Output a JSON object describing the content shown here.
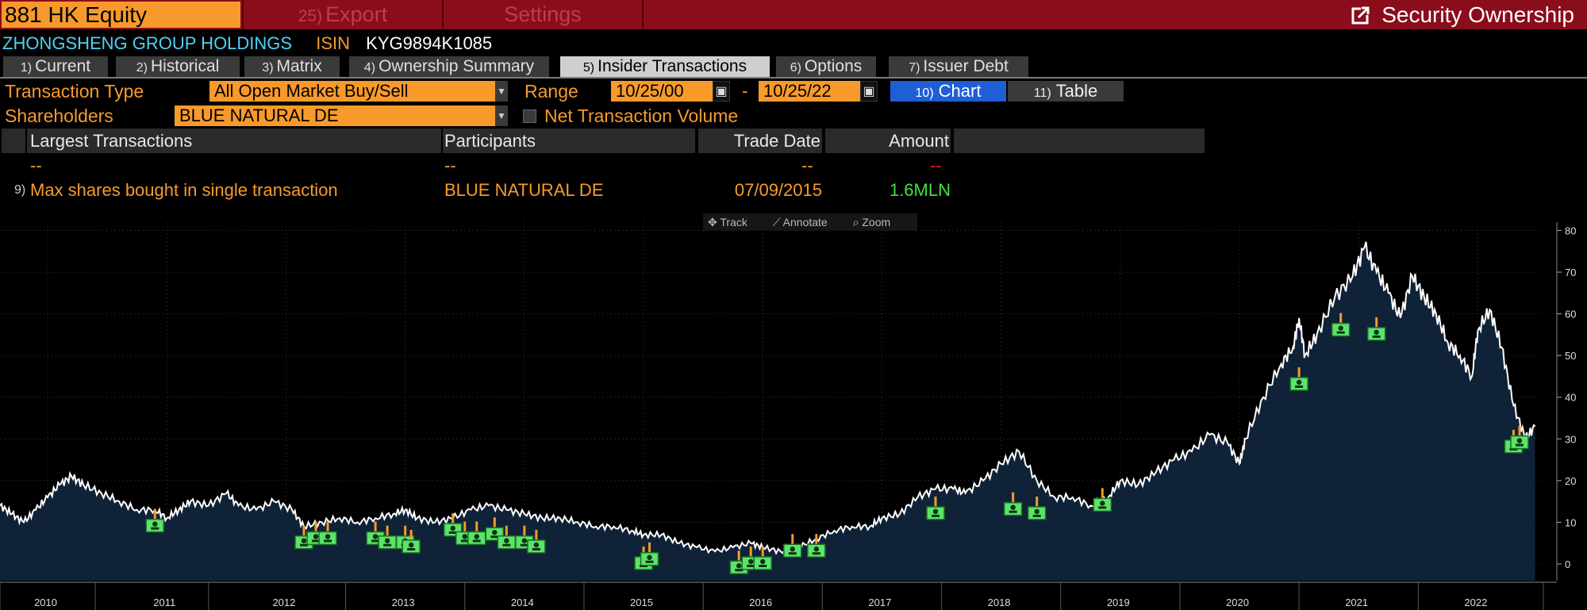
{
  "header": {
    "ticker": "881 HK Equity",
    "export_num": "25)",
    "export_label": "Export",
    "settings_label": "Settings",
    "title": "Security Ownership"
  },
  "security": {
    "name": "ZHONGSHENG GROUP HOLDINGS",
    "isin_label": "ISIN",
    "isin": "KYG9894K1085"
  },
  "tabs": [
    {
      "num": "1)",
      "label": "Current"
    },
    {
      "num": "2)",
      "label": "Historical"
    },
    {
      "num": "3)",
      "label": "Matrix"
    },
    {
      "num": "4)",
      "label": "Ownership Summary"
    },
    {
      "num": "5)",
      "label": "Insider Transactions"
    },
    {
      "num": "6)",
      "label": "Options"
    },
    {
      "num": "7)",
      "label": "Issuer Debt"
    }
  ],
  "controls": {
    "transaction_type_label": "Transaction Type",
    "transaction_type_value": "All Open Market Buy/Sell",
    "range_label": "Range",
    "range_start": "10/25/00",
    "range_dash": "-",
    "range_end": "10/25/22",
    "chart_num": "10)",
    "chart_label": "Chart",
    "table_num": "11)",
    "table_label": "Table",
    "shareholders_label": "Shareholders",
    "shareholders_value": "BLUE NATURAL DE",
    "net_volume_label": "Net Transaction Volume"
  },
  "table": {
    "headers": [
      "Largest Transactions",
      "Participants",
      "Trade Date",
      "Amount"
    ],
    "dash_row": [
      "--",
      "--",
      "--",
      "--"
    ],
    "rows": [
      {
        "num": "9)",
        "description": "Max shares bought in single transaction",
        "participant": "BLUE NATURAL DE",
        "date": "07/09/2015",
        "amount": "1.6MLN"
      }
    ]
  },
  "chart_tools": {
    "track": "Track",
    "annotate": "Annotate",
    "zoom": "Zoom"
  },
  "colors": {
    "accent": "#f79a2b",
    "topbar": "#8a0d1c",
    "secname": "#4fd2f5",
    "amount": "#3ee03e",
    "dash_red": "#e0201c",
    "marker": "#5be36a",
    "area": "#0f2238"
  },
  "chart_data": {
    "type": "area",
    "ylim": [
      -4,
      82
    ],
    "yticks": [
      0,
      10,
      20,
      30,
      40,
      50,
      60,
      70,
      80
    ],
    "xlim": [
      2009.6,
      2022.55
    ],
    "xticks": [
      {
        "label": "2010",
        "x": 2010.0
      },
      {
        "label": "2011",
        "x": 2011.0
      },
      {
        "label": "2012",
        "x": 2012.0
      },
      {
        "label": "2013",
        "x": 2013.0
      },
      {
        "label": "2014",
        "x": 2014.0
      },
      {
        "label": "2015",
        "x": 2015.0
      },
      {
        "label": "2016",
        "x": 2016.0
      },
      {
        "label": "2017",
        "x": 2017.0
      },
      {
        "label": "2018",
        "x": 2018.0
      },
      {
        "label": "2019",
        "x": 2019.0
      },
      {
        "label": "2020",
        "x": 2020.0
      },
      {
        "label": "2021",
        "x": 2021.0
      },
      {
        "label": "2022",
        "x": 2022.0
      }
    ],
    "price_series": {
      "x": [
        2009.6,
        2009.7,
        2009.8,
        2009.9,
        2010.0,
        2010.1,
        2010.2,
        2010.3,
        2010.45,
        2010.6,
        2010.75,
        2010.9,
        2011.0,
        2011.1,
        2011.2,
        2011.35,
        2011.5,
        2011.6,
        2011.75,
        2011.9,
        2012.05,
        2012.15,
        2012.3,
        2012.45,
        2012.6,
        2012.75,
        2012.9,
        2013.0,
        2013.1,
        2013.25,
        2013.4,
        2013.55,
        2013.7,
        2013.85,
        2014.0,
        2014.15,
        2014.3,
        2014.45,
        2014.6,
        2014.75,
        2014.9,
        2015.0,
        2015.15,
        2015.3,
        2015.45,
        2015.6,
        2015.75,
        2015.9,
        2016.0,
        2016.15,
        2016.3,
        2016.45,
        2016.6,
        2016.75,
        2016.9,
        2017.0,
        2017.15,
        2017.3,
        2017.45,
        2017.6,
        2017.7,
        2017.85,
        2018.0,
        2018.15,
        2018.3,
        2018.45,
        2018.6,
        2018.75,
        2018.9,
        2019.0,
        2019.15,
        2019.3,
        2019.45,
        2019.6,
        2019.75,
        2019.9,
        2020.0,
        2020.05,
        2020.2,
        2020.35,
        2020.45,
        2020.5,
        2020.55,
        2020.65,
        2020.8,
        2020.95,
        2021.05,
        2021.15,
        2021.25,
        2021.35,
        2021.45,
        2021.55,
        2021.65,
        2021.75,
        2021.85,
        2021.95,
        2022.0,
        2022.1,
        2022.2,
        2022.3,
        2022.4,
        2022.48
      ],
      "values": [
        14,
        12,
        10,
        13,
        16,
        19,
        21,
        19,
        17,
        15,
        13,
        13,
        11,
        13,
        15,
        14,
        17,
        14,
        13,
        15,
        13,
        9,
        10,
        11,
        10,
        11,
        12,
        13,
        11,
        10,
        11,
        13,
        14,
        13,
        12,
        11,
        11,
        10,
        9,
        9,
        8,
        7,
        7,
        5,
        4,
        3,
        4,
        5,
        4,
        3,
        4,
        6,
        8,
        9,
        9,
        11,
        12,
        16,
        18,
        18,
        17,
        20,
        24,
        27,
        20,
        16,
        16,
        14,
        16,
        20,
        19,
        22,
        25,
        27,
        31,
        29,
        24,
        30,
        40,
        48,
        52,
        59,
        50,
        55,
        64,
        69,
        76,
        70,
        65,
        59,
        69,
        64,
        60,
        53,
        50,
        45,
        56,
        61,
        52,
        38,
        30,
        33
      ]
    },
    "markers": {
      "x": [
        2010.9,
        2012.15,
        2012.25,
        2012.35,
        2012.75,
        2012.85,
        2013.0,
        2013.05,
        2013.4,
        2013.5,
        2013.6,
        2013.75,
        2013.85,
        2014.0,
        2014.1,
        2015.0,
        2015.05,
        2015.8,
        2015.9,
        2016.0,
        2016.25,
        2016.45,
        2017.45,
        2018.1,
        2018.3,
        2018.85,
        2020.5,
        2020.85,
        2021.15,
        2022.3,
        2022.35
      ],
      "values": [
        9,
        5,
        6,
        6,
        6,
        5,
        5,
        4,
        8,
        6,
        6,
        7,
        5,
        5,
        4,
        0,
        1,
        -1,
        0,
        0,
        3,
        3,
        12,
        13,
        12,
        14,
        43,
        56,
        55,
        28,
        29
      ]
    }
  }
}
